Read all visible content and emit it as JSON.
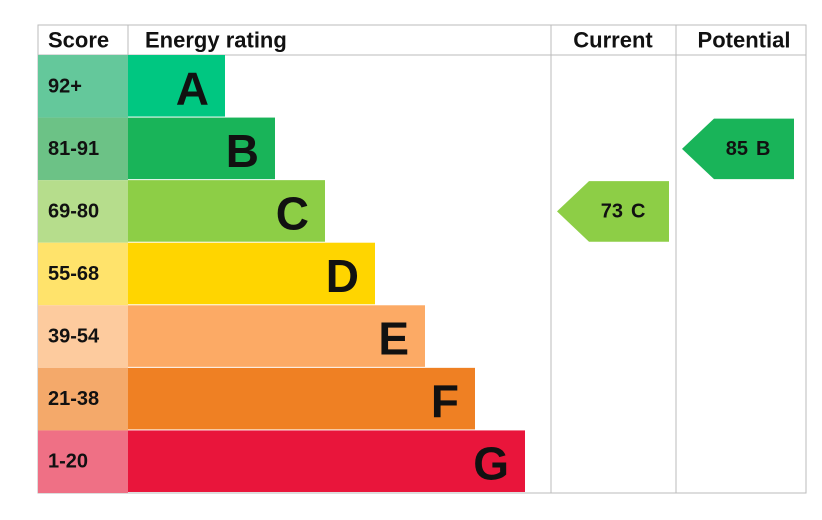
{
  "header": {
    "score": "Score",
    "energy_rating": "Energy rating",
    "current": "Current",
    "potential": "Potential"
  },
  "bands": [
    {
      "score": "92+",
      "rating": "A",
      "color": "#00c781",
      "score_color": "#64c89b"
    },
    {
      "score": "81-91",
      "rating": "B",
      "color": "#19b459",
      "score_color": "#6cc286"
    },
    {
      "score": "69-80",
      "rating": "C",
      "color": "#8dce46",
      "score_color": "#b6dd8c"
    },
    {
      "score": "55-68",
      "rating": "D",
      "color": "#ffd500",
      "score_color": "#ffe36b"
    },
    {
      "score": "39-54",
      "rating": "E",
      "color": "#fcaa65",
      "score_color": "#fdcb9e"
    },
    {
      "score": "21-38",
      "rating": "F",
      "color": "#ef8023",
      "score_color": "#f4a96a"
    },
    {
      "score": "1-20",
      "rating": "G",
      "color": "#e9153b",
      "score_color": "#ef7085"
    }
  ],
  "current": {
    "score": 73,
    "rating": "C",
    "band": 2
  },
  "potential": {
    "score": 85,
    "rating": "B",
    "band": 1
  }
}
